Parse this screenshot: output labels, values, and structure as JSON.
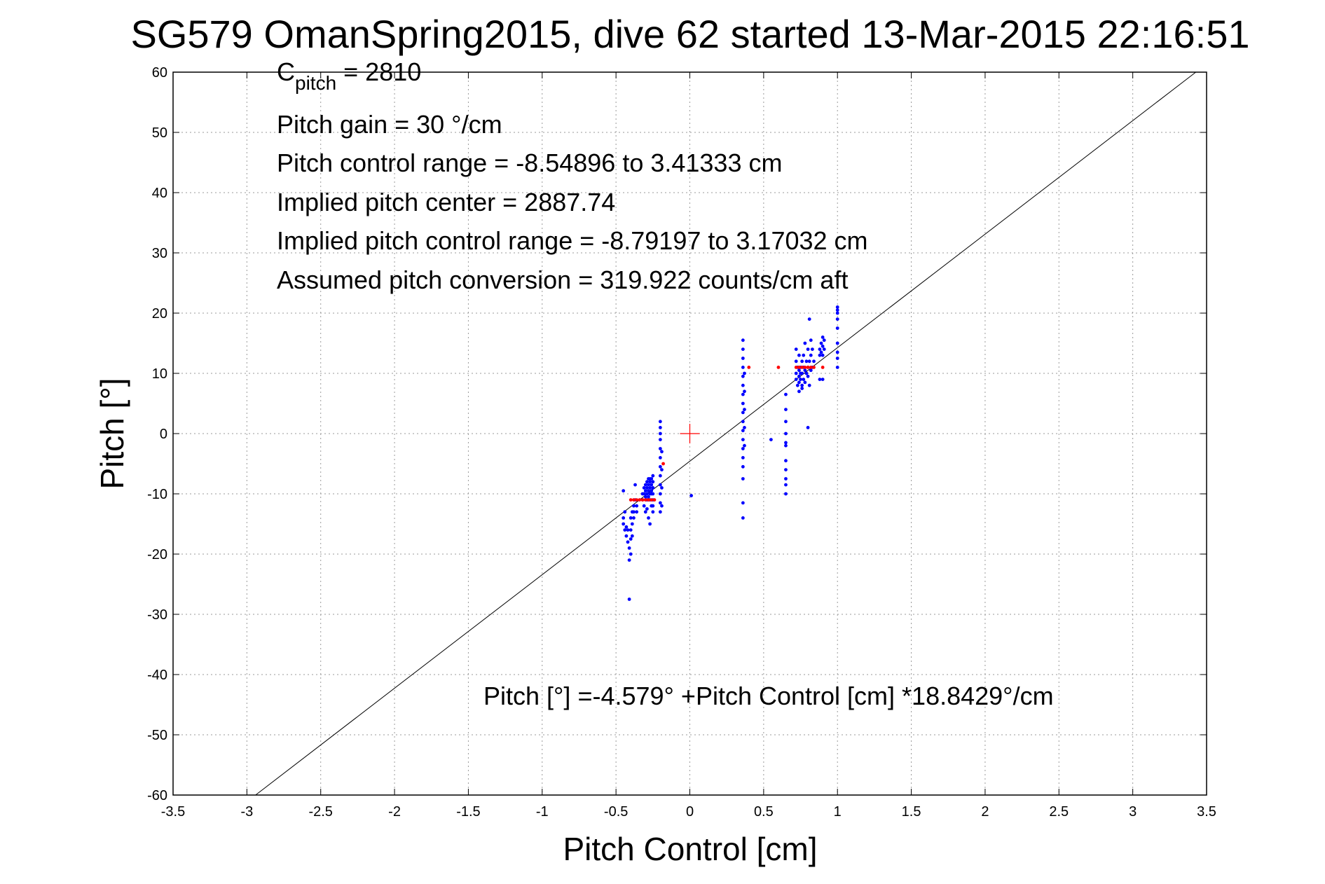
{
  "chart_data": {
    "type": "scatter",
    "title": "SG579 OmanSpring2015, dive 62 started 13-Mar-2015 22:16:51",
    "xlabel": "Pitch Control [cm]",
    "ylabel": "Pitch [°]",
    "xlim": [
      -3.5,
      3.5
    ],
    "ylim": [
      -60,
      60
    ],
    "xticks": [
      "-3.5",
      "-3",
      "-2.5",
      "-2",
      "-1.5",
      "-1",
      "-0.5",
      "0",
      "0.5",
      "1",
      "1.5",
      "2",
      "2.5",
      "3",
      "3.5"
    ],
    "yticks": [
      "-60",
      "-50",
      "-40",
      "-30",
      "-20",
      "-10",
      "0",
      "10",
      "20",
      "30",
      "40",
      "50",
      "60"
    ],
    "grid": true,
    "annotations": {
      "cpitch_main": "C",
      "cpitch_sub": "pitch",
      "cpitch_value": " = 2810",
      "lines": [
        "Pitch gain = 30 °/cm",
        "Pitch control range = -8.54896 to 3.41333 cm",
        "Implied pitch center = 2887.74",
        "Implied pitch control range = -8.79197 to 3.17032 cm",
        "Assumed pitch conversion = 319.922 counts/cm aft"
      ],
      "fit_equation": "Pitch [°] =-4.579° +Pitch Control [cm] *18.8429°/cm"
    },
    "fit_line": {
      "intercept": -4.579,
      "slope": 18.8429,
      "color": "#000000"
    },
    "center_marker": {
      "x": 0,
      "y": 0,
      "color": "#ff0000"
    },
    "series": [
      {
        "color": "#0000ff",
        "points": [
          [
            -0.45,
            -9.5
          ],
          [
            -0.45,
            -14
          ],
          [
            -0.45,
            -15
          ],
          [
            -0.44,
            -13
          ],
          [
            -0.44,
            -16
          ],
          [
            -0.43,
            -15.5
          ],
          [
            -0.43,
            -17
          ],
          [
            -0.42,
            -16
          ],
          [
            -0.42,
            -18
          ],
          [
            -0.41,
            -19
          ],
          [
            -0.41,
            -21
          ],
          [
            -0.41,
            -27.5
          ],
          [
            -0.4,
            -14
          ],
          [
            -0.4,
            -16
          ],
          [
            -0.4,
            -17.5
          ],
          [
            -0.4,
            -20
          ],
          [
            -0.39,
            -13
          ],
          [
            -0.39,
            -15
          ],
          [
            -0.39,
            -17
          ],
          [
            -0.38,
            -12
          ],
          [
            -0.38,
            -13
          ],
          [
            -0.38,
            -14
          ],
          [
            -0.37,
            -11
          ],
          [
            -0.37,
            -8.5
          ],
          [
            -0.36,
            -12
          ],
          [
            -0.36,
            -13
          ],
          [
            -0.32,
            -10
          ],
          [
            -0.32,
            -11
          ],
          [
            -0.31,
            -9
          ],
          [
            -0.31,
            -10
          ],
          [
            -0.31,
            -12
          ],
          [
            -0.3,
            -8.5
          ],
          [
            -0.3,
            -9.5
          ],
          [
            -0.3,
            -10.5
          ],
          [
            -0.3,
            -13
          ],
          [
            -0.29,
            -8
          ],
          [
            -0.29,
            -9
          ],
          [
            -0.29,
            -10
          ],
          [
            -0.29,
            -11
          ],
          [
            -0.29,
            -12.5
          ],
          [
            -0.28,
            -7.5
          ],
          [
            -0.28,
            -8.5
          ],
          [
            -0.28,
            -9.5
          ],
          [
            -0.28,
            -10.5
          ],
          [
            -0.28,
            -14
          ],
          [
            -0.27,
            -7.5
          ],
          [
            -0.27,
            -8
          ],
          [
            -0.27,
            -9
          ],
          [
            -0.27,
            -10
          ],
          [
            -0.27,
            -11
          ],
          [
            -0.27,
            -15
          ],
          [
            -0.26,
            -7.5
          ],
          [
            -0.26,
            -8.5
          ],
          [
            -0.26,
            -9.5
          ],
          [
            -0.26,
            -10
          ],
          [
            -0.26,
            -12
          ],
          [
            -0.25,
            -7
          ],
          [
            -0.25,
            -8
          ],
          [
            -0.25,
            -9
          ],
          [
            -0.25,
            -10
          ],
          [
            -0.25,
            -11
          ],
          [
            -0.25,
            -12
          ],
          [
            -0.25,
            -13
          ],
          [
            -0.2,
            2
          ],
          [
            -0.2,
            1
          ],
          [
            -0.2,
            0
          ],
          [
            -0.2,
            -1
          ],
          [
            -0.2,
            -2.5
          ],
          [
            -0.2,
            -4
          ],
          [
            -0.2,
            -5.5
          ],
          [
            -0.2,
            -7
          ],
          [
            -0.2,
            -8.5
          ],
          [
            -0.2,
            -10
          ],
          [
            -0.2,
            -11.5
          ],
          [
            -0.2,
            -13
          ],
          [
            -0.19,
            -3
          ],
          [
            -0.19,
            -6
          ],
          [
            -0.19,
            -9
          ],
          [
            -0.19,
            -12
          ],
          [
            0.01,
            -10.3
          ],
          [
            0.36,
            15.5
          ],
          [
            0.36,
            14
          ],
          [
            0.36,
            12.5
          ],
          [
            0.36,
            11
          ],
          [
            0.36,
            9.5
          ],
          [
            0.36,
            8
          ],
          [
            0.36,
            6.5
          ],
          [
            0.36,
            5
          ],
          [
            0.36,
            3.5
          ],
          [
            0.36,
            2
          ],
          [
            0.36,
            0.5
          ],
          [
            0.36,
            -1
          ],
          [
            0.36,
            -2.5
          ],
          [
            0.36,
            -4
          ],
          [
            0.36,
            -5.5
          ],
          [
            0.36,
            -7.5
          ],
          [
            0.36,
            -11.5
          ],
          [
            0.36,
            -14
          ],
          [
            0.37,
            10
          ],
          [
            0.37,
            7
          ],
          [
            0.37,
            4
          ],
          [
            0.37,
            1
          ],
          [
            0.37,
            -2
          ],
          [
            0.55,
            -1
          ],
          [
            0.65,
            6.5
          ],
          [
            0.65,
            4
          ],
          [
            0.65,
            2
          ],
          [
            0.65,
            0
          ],
          [
            0.65,
            -1.5
          ],
          [
            0.65,
            -2
          ],
          [
            0.65,
            -4.5
          ],
          [
            0.65,
            -6
          ],
          [
            0.65,
            -7.5
          ],
          [
            0.65,
            -8.5
          ],
          [
            0.65,
            -10
          ],
          [
            0.72,
            14
          ],
          [
            0.72,
            12
          ],
          [
            0.72,
            10
          ],
          [
            0.72,
            9
          ],
          [
            0.73,
            11
          ],
          [
            0.73,
            8
          ],
          [
            0.74,
            13
          ],
          [
            0.74,
            10.5
          ],
          [
            0.74,
            9.5
          ],
          [
            0.74,
            8.5
          ],
          [
            0.74,
            7
          ],
          [
            0.75,
            11
          ],
          [
            0.75,
            10
          ],
          [
            0.75,
            9
          ],
          [
            0.76,
            12
          ],
          [
            0.76,
            10
          ],
          [
            0.76,
            8
          ],
          [
            0.76,
            7.5
          ],
          [
            0.77,
            13
          ],
          [
            0.77,
            11
          ],
          [
            0.77,
            9
          ],
          [
            0.78,
            15
          ],
          [
            0.78,
            10.5
          ],
          [
            0.78,
            8.5
          ],
          [
            0.79,
            12
          ],
          [
            0.79,
            10
          ],
          [
            0.8,
            14
          ],
          [
            0.8,
            11
          ],
          [
            0.8,
            9.5
          ],
          [
            0.8,
            1
          ],
          [
            0.81,
            19
          ],
          [
            0.81,
            12
          ],
          [
            0.81,
            8
          ],
          [
            0.82,
            15.5
          ],
          [
            0.82,
            13
          ],
          [
            0.82,
            10.5
          ],
          [
            0.83,
            14
          ],
          [
            0.83,
            11
          ],
          [
            0.84,
            12
          ],
          [
            0.88,
            14
          ],
          [
            0.88,
            13
          ],
          [
            0.88,
            9
          ],
          [
            0.89,
            15
          ],
          [
            0.89,
            13.5
          ],
          [
            0.9,
            16
          ],
          [
            0.9,
            14.5
          ],
          [
            0.9,
            13
          ],
          [
            0.9,
            9
          ],
          [
            0.91,
            15.5
          ],
          [
            0.91,
            14
          ],
          [
            1,
            21
          ],
          [
            1,
            20.5
          ],
          [
            1,
            20
          ],
          [
            1,
            19
          ],
          [
            1,
            17.5
          ],
          [
            1,
            15
          ],
          [
            1,
            13.5
          ],
          [
            1,
            12.5
          ],
          [
            1,
            11
          ]
        ]
      },
      {
        "color": "#ff0000",
        "points": [
          [
            -0.4,
            -11
          ],
          [
            -0.38,
            -11
          ],
          [
            -0.36,
            -11
          ],
          [
            -0.34,
            -11
          ],
          [
            -0.32,
            -11
          ],
          [
            -0.3,
            -11
          ],
          [
            -0.28,
            -11
          ],
          [
            -0.26,
            -11
          ],
          [
            -0.24,
            -11
          ],
          [
            -0.18,
            -5
          ],
          [
            0.4,
            11
          ],
          [
            0.6,
            11
          ],
          [
            0.72,
            11
          ],
          [
            0.74,
            11
          ],
          [
            0.76,
            11
          ],
          [
            0.78,
            11
          ],
          [
            0.8,
            11
          ],
          [
            0.82,
            11
          ],
          [
            0.84,
            11
          ],
          [
            0.9,
            11
          ]
        ]
      }
    ]
  }
}
